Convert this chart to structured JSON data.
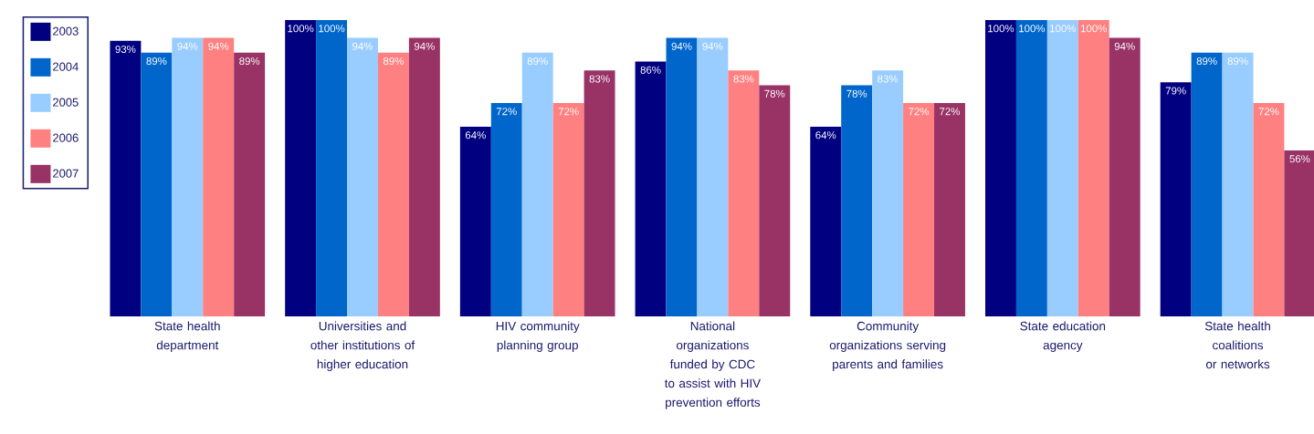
{
  "chart_data": {
    "type": "bar",
    "categories": [
      "State health department",
      "Universities and other institutions of higher education",
      "HIV community planning group",
      "National organizations funded by CDC to assist with HIV prevention efforts",
      "Community organizations serving parents and families",
      "State education agency",
      "State health coalitions or networks"
    ],
    "series": [
      {
        "name": "2003",
        "color": "#000080",
        "values": [
          93,
          100,
          64,
          86,
          64,
          100,
          79
        ],
        "value_labels": [
          "93%",
          "100%",
          "64%",
          "86%",
          "64%",
          "100%",
          "79%"
        ]
      },
      {
        "name": "2004",
        "color": "#0066cc",
        "values": [
          89,
          100,
          72,
          94,
          78,
          100,
          89
        ],
        "value_labels": [
          "89%",
          "100%",
          "72%",
          "94%",
          "78%",
          "100%",
          "89%"
        ]
      },
      {
        "name": "2005",
        "color": "#99ccff",
        "values": [
          94,
          94,
          89,
          94,
          83,
          100,
          89
        ],
        "value_labels": [
          "94%",
          "94%",
          "89%",
          "94%",
          "83%",
          "100%",
          "89%"
        ]
      },
      {
        "name": "2006",
        "color": "#ff8080",
        "values": [
          94,
          89,
          72,
          83,
          72,
          100,
          72
        ],
        "value_labels": [
          "94%",
          "89%",
          "72%",
          "83%",
          "72%",
          "100%",
          "72%"
        ]
      },
      {
        "name": "2007",
        "color": "#993366",
        "values": [
          89,
          94,
          83,
          78,
          72,
          94,
          56
        ],
        "value_labels": [
          "89%",
          "94%",
          "83%",
          "78%",
          "72%",
          "94%",
          "56%"
        ]
      }
    ],
    "legend": "left"
  }
}
